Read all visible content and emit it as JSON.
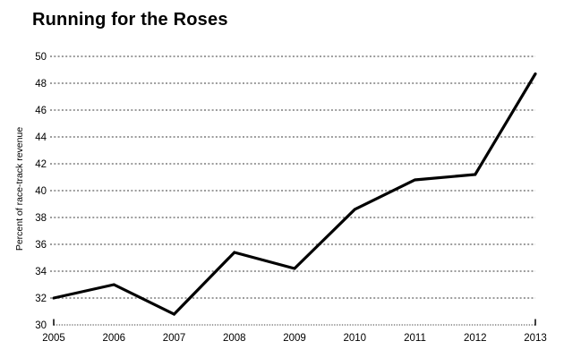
{
  "chart_data": {
    "type": "line",
    "title": "Running for the Roses",
    "xlabel": "",
    "ylabel": "Percent of race-track revenue",
    "categories": [
      "2005",
      "2006",
      "2007",
      "2008",
      "2009",
      "2010",
      "2011",
      "2012",
      "2013"
    ],
    "values": [
      32.0,
      33.0,
      30.8,
      35.4,
      34.2,
      38.6,
      40.8,
      41.2,
      48.7
    ],
    "ylim": [
      30,
      50
    ],
    "yticks": [
      30,
      32,
      34,
      36,
      38,
      40,
      42,
      44,
      46,
      48,
      50
    ],
    "grid": "horizontal-dotted",
    "legend": "none",
    "colors": {
      "line": "#000000",
      "grid": "#8f8f8f",
      "baseline": "#666666",
      "end_tick": "#000000",
      "text": "#000000"
    }
  }
}
